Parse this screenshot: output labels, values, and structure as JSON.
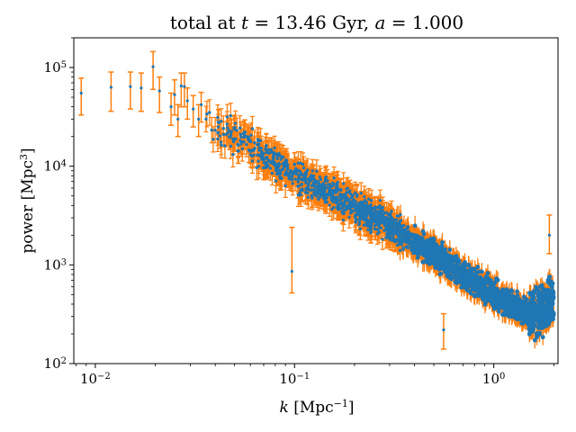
{
  "chart_data": {
    "type": "scatter",
    "title": "total at t = 13.46 Gyr, a = 1.000",
    "xlabel": "k [Mpc−1]",
    "ylabel": "power [Mpc3]",
    "x_scale": "log",
    "y_scale": "log",
    "xlim": [
      0.0078,
      2.1
    ],
    "ylim": [
      100,
      200000
    ],
    "x_ticks": [
      {
        "value": 0.01,
        "base": "10",
        "exp": "−2"
      },
      {
        "value": 0.1,
        "base": "10",
        "exp": "−1"
      },
      {
        "value": 1,
        "base": "10",
        "exp": "0"
      }
    ],
    "y_ticks": [
      {
        "value": 100,
        "base": "10",
        "exp": "2"
      },
      {
        "value": 1000,
        "base": "10",
        "exp": "3"
      },
      {
        "value": 10000,
        "base": "10",
        "exp": "4"
      },
      {
        "value": 100000,
        "base": "10",
        "exp": "5"
      }
    ],
    "grid": false,
    "series": [
      {
        "marker_color": "#1f77b4",
        "errorbar_color": "#ff7f0e",
        "low_k_points": [
          {
            "k": 0.0085,
            "p": 55000,
            "err_lo": 33000,
            "err_hi": 78000
          },
          {
            "k": 0.012,
            "p": 63000,
            "err_lo": 36000,
            "err_hi": 90000
          },
          {
            "k": 0.015,
            "p": 64000,
            "err_lo": 38000,
            "err_hi": 90000
          },
          {
            "k": 0.017,
            "p": 62000,
            "err_lo": 36000,
            "err_hi": 88000
          },
          {
            "k": 0.0195,
            "p": 102000,
            "err_lo": 60000,
            "err_hi": 145000
          },
          {
            "k": 0.021,
            "p": 58000,
            "err_lo": 35000,
            "err_hi": 80000
          },
          {
            "k": 0.024,
            "p": 40000,
            "err_lo": 26000,
            "err_hi": 55000
          },
          {
            "k": 0.025,
            "p": 53000,
            "err_lo": 33000,
            "err_hi": 75000
          },
          {
            "k": 0.026,
            "p": 30000,
            "err_lo": 20000,
            "err_hi": 42000
          },
          {
            "k": 0.027,
            "p": 65000,
            "err_lo": 40000,
            "err_hi": 88000
          },
          {
            "k": 0.028,
            "p": 64000,
            "err_lo": 40000,
            "err_hi": 88000
          },
          {
            "k": 0.029,
            "p": 46000,
            "err_lo": 30000,
            "err_hi": 62000
          },
          {
            "k": 0.031,
            "p": 38000,
            "err_lo": 25000,
            "err_hi": 52000
          },
          {
            "k": 0.033,
            "p": 30000,
            "err_lo": 20000,
            "err_hi": 42000
          },
          {
            "k": 0.034,
            "p": 42000,
            "err_lo": 28000,
            "err_hi": 56000
          }
        ],
        "trend": [
          [
            0.035,
            32000
          ],
          [
            0.1,
            8000
          ],
          [
            0.3,
            2500
          ],
          [
            1.0,
            500
          ],
          [
            2.0,
            230
          ]
        ],
        "outliers": [
          {
            "k": 0.097,
            "p": 860,
            "err_lo": 520,
            "err_hi": 2400
          },
          {
            "k": 0.56,
            "p": 220,
            "err_lo": 140,
            "err_hi": 320
          },
          {
            "k": 1.9,
            "p": 2000,
            "err_lo": 1300,
            "err_hi": 3200
          }
        ]
      }
    ]
  }
}
